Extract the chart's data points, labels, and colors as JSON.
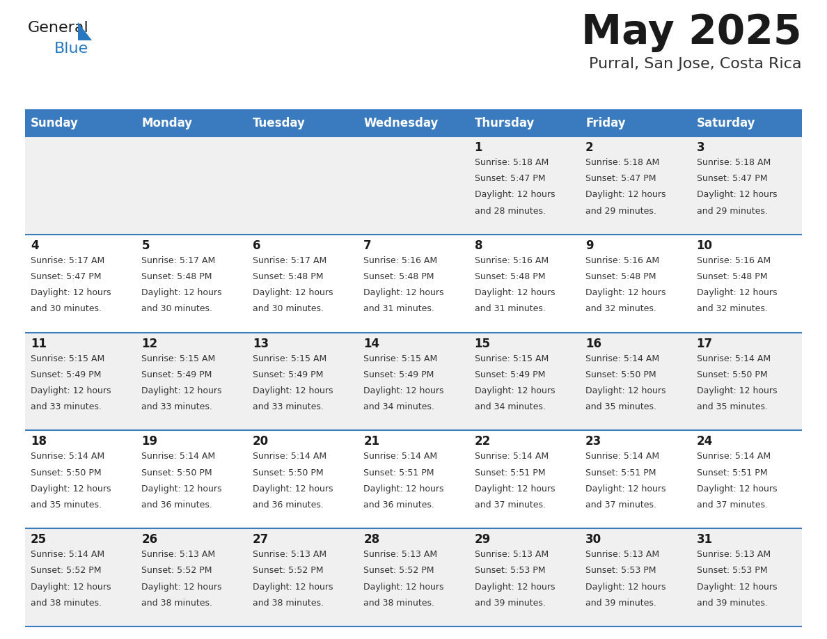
{
  "title": "May 2025",
  "subtitle": "Purral, San Jose, Costa Rica",
  "header_bg": "#3a7abf",
  "header_text": "#ffffff",
  "cell_bg_odd": "#f0f0f0",
  "cell_bg_even": "#ffffff",
  "border_color": "#3a7abf",
  "days_of_week": [
    "Sunday",
    "Monday",
    "Tuesday",
    "Wednesday",
    "Thursday",
    "Friday",
    "Saturday"
  ],
  "title_color": "#1a1a1a",
  "subtitle_color": "#333333",
  "day_num_color": "#1a1a1a",
  "cell_text_color": "#333333",
  "logo_general_color": "#1a1a1a",
  "logo_blue_color": "#2878c0",
  "weeks": [
    [
      {
        "day": "",
        "sunrise": "",
        "sunset": "",
        "daylight": ""
      },
      {
        "day": "",
        "sunrise": "",
        "sunset": "",
        "daylight": ""
      },
      {
        "day": "",
        "sunrise": "",
        "sunset": "",
        "daylight": ""
      },
      {
        "day": "",
        "sunrise": "",
        "sunset": "",
        "daylight": ""
      },
      {
        "day": "1",
        "sunrise": "5:18 AM",
        "sunset": "5:47 PM",
        "daylight": "12 hours and 28 minutes."
      },
      {
        "day": "2",
        "sunrise": "5:18 AM",
        "sunset": "5:47 PM",
        "daylight": "12 hours and 29 minutes."
      },
      {
        "day": "3",
        "sunrise": "5:18 AM",
        "sunset": "5:47 PM",
        "daylight": "12 hours and 29 minutes."
      }
    ],
    [
      {
        "day": "4",
        "sunrise": "5:17 AM",
        "sunset": "5:47 PM",
        "daylight": "12 hours and 30 minutes."
      },
      {
        "day": "5",
        "sunrise": "5:17 AM",
        "sunset": "5:48 PM",
        "daylight": "12 hours and 30 minutes."
      },
      {
        "day": "6",
        "sunrise": "5:17 AM",
        "sunset": "5:48 PM",
        "daylight": "12 hours and 30 minutes."
      },
      {
        "day": "7",
        "sunrise": "5:16 AM",
        "sunset": "5:48 PM",
        "daylight": "12 hours and 31 minutes."
      },
      {
        "day": "8",
        "sunrise": "5:16 AM",
        "sunset": "5:48 PM",
        "daylight": "12 hours and 31 minutes."
      },
      {
        "day": "9",
        "sunrise": "5:16 AM",
        "sunset": "5:48 PM",
        "daylight": "12 hours and 32 minutes."
      },
      {
        "day": "10",
        "sunrise": "5:16 AM",
        "sunset": "5:48 PM",
        "daylight": "12 hours and 32 minutes."
      }
    ],
    [
      {
        "day": "11",
        "sunrise": "5:15 AM",
        "sunset": "5:49 PM",
        "daylight": "12 hours and 33 minutes."
      },
      {
        "day": "12",
        "sunrise": "5:15 AM",
        "sunset": "5:49 PM",
        "daylight": "12 hours and 33 minutes."
      },
      {
        "day": "13",
        "sunrise": "5:15 AM",
        "sunset": "5:49 PM",
        "daylight": "12 hours and 33 minutes."
      },
      {
        "day": "14",
        "sunrise": "5:15 AM",
        "sunset": "5:49 PM",
        "daylight": "12 hours and 34 minutes."
      },
      {
        "day": "15",
        "sunrise": "5:15 AM",
        "sunset": "5:49 PM",
        "daylight": "12 hours and 34 minutes."
      },
      {
        "day": "16",
        "sunrise": "5:14 AM",
        "sunset": "5:50 PM",
        "daylight": "12 hours and 35 minutes."
      },
      {
        "day": "17",
        "sunrise": "5:14 AM",
        "sunset": "5:50 PM",
        "daylight": "12 hours and 35 minutes."
      }
    ],
    [
      {
        "day": "18",
        "sunrise": "5:14 AM",
        "sunset": "5:50 PM",
        "daylight": "12 hours and 35 minutes."
      },
      {
        "day": "19",
        "sunrise": "5:14 AM",
        "sunset": "5:50 PM",
        "daylight": "12 hours and 36 minutes."
      },
      {
        "day": "20",
        "sunrise": "5:14 AM",
        "sunset": "5:50 PM",
        "daylight": "12 hours and 36 minutes."
      },
      {
        "day": "21",
        "sunrise": "5:14 AM",
        "sunset": "5:51 PM",
        "daylight": "12 hours and 36 minutes."
      },
      {
        "day": "22",
        "sunrise": "5:14 AM",
        "sunset": "5:51 PM",
        "daylight": "12 hours and 37 minutes."
      },
      {
        "day": "23",
        "sunrise": "5:14 AM",
        "sunset": "5:51 PM",
        "daylight": "12 hours and 37 minutes."
      },
      {
        "day": "24",
        "sunrise": "5:14 AM",
        "sunset": "5:51 PM",
        "daylight": "12 hours and 37 minutes."
      }
    ],
    [
      {
        "day": "25",
        "sunrise": "5:14 AM",
        "sunset": "5:52 PM",
        "daylight": "12 hours and 38 minutes."
      },
      {
        "day": "26",
        "sunrise": "5:13 AM",
        "sunset": "5:52 PM",
        "daylight": "12 hours and 38 minutes."
      },
      {
        "day": "27",
        "sunrise": "5:13 AM",
        "sunset": "5:52 PM",
        "daylight": "12 hours and 38 minutes."
      },
      {
        "day": "28",
        "sunrise": "5:13 AM",
        "sunset": "5:52 PM",
        "daylight": "12 hours and 38 minutes."
      },
      {
        "day": "29",
        "sunrise": "5:13 AM",
        "sunset": "5:53 PM",
        "daylight": "12 hours and 39 minutes."
      },
      {
        "day": "30",
        "sunrise": "5:13 AM",
        "sunset": "5:53 PM",
        "daylight": "12 hours and 39 minutes."
      },
      {
        "day": "31",
        "sunrise": "5:13 AM",
        "sunset": "5:53 PM",
        "daylight": "12 hours and 39 minutes."
      }
    ]
  ]
}
